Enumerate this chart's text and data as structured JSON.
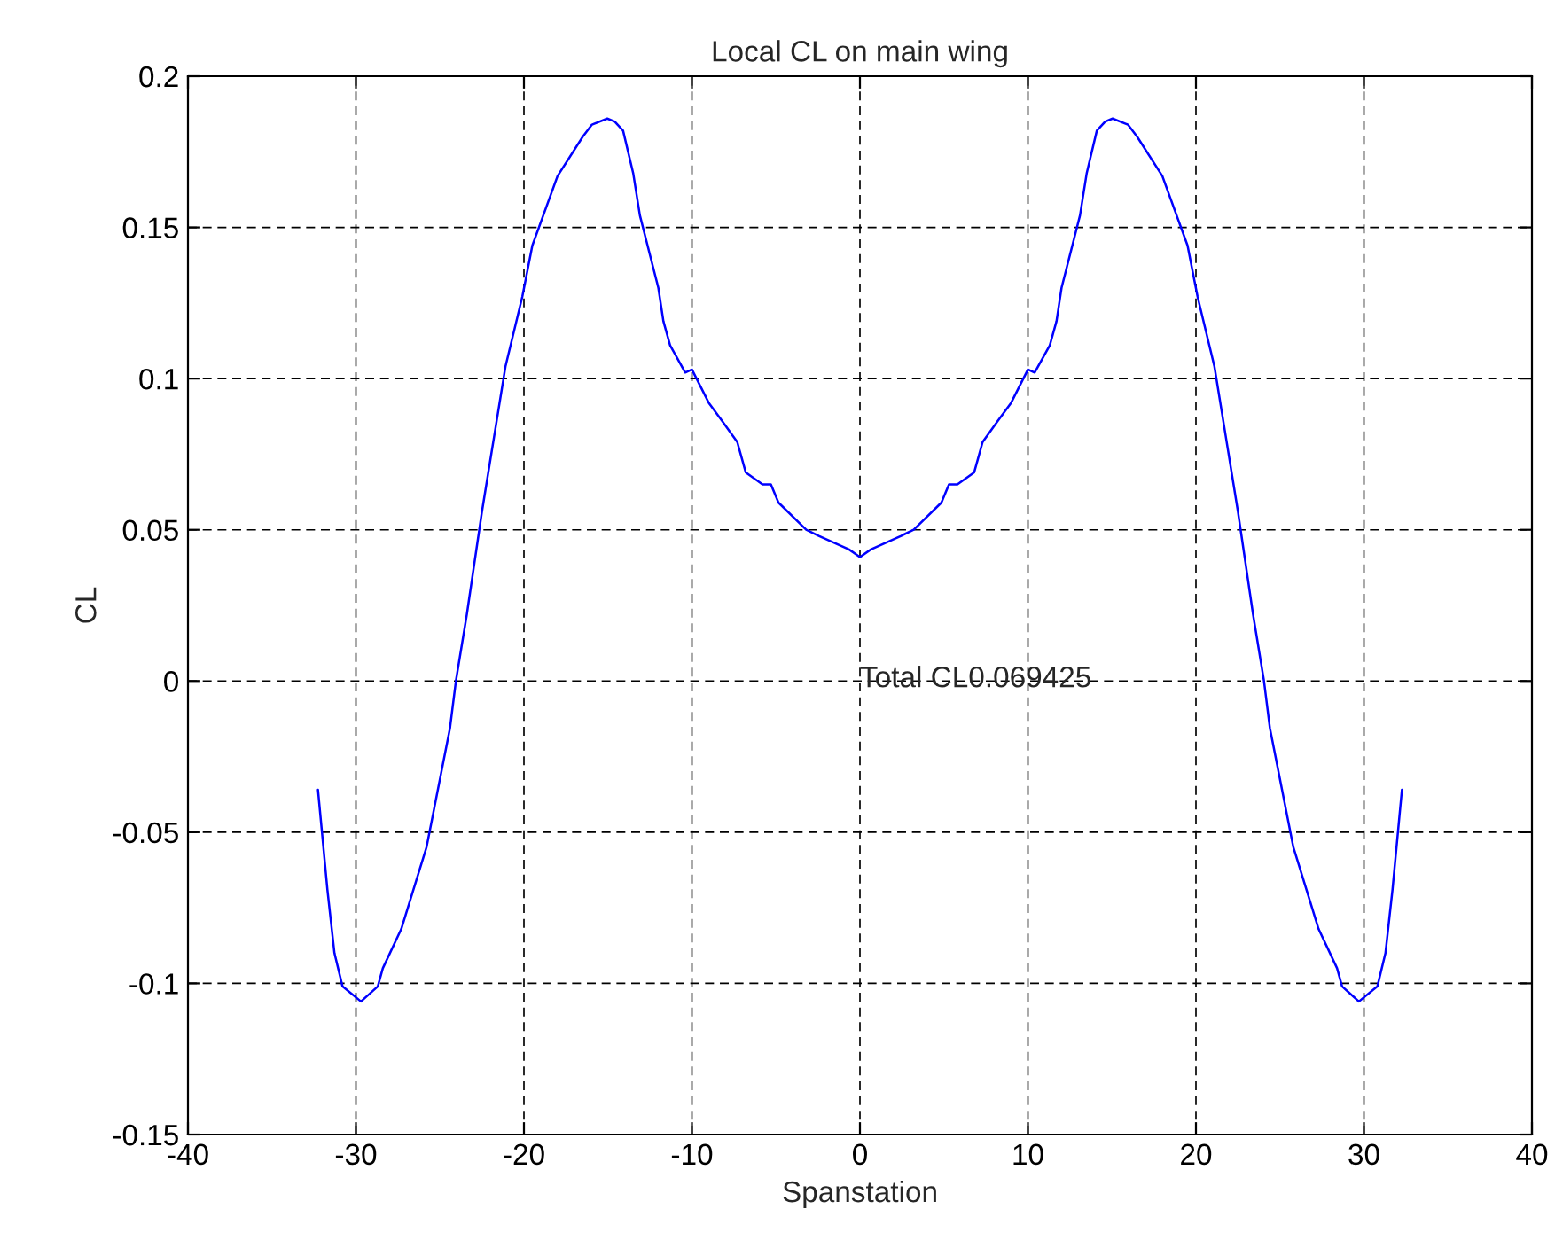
{
  "chart_data": {
    "type": "line",
    "title": "Local CL on main wing",
    "xlabel": "Spanstation",
    "ylabel": "CL",
    "xlim": [
      -40,
      40
    ],
    "xticks": [
      -40,
      -30,
      -20,
      -10,
      0,
      10,
      20,
      30,
      40
    ],
    "ylim": [
      -0.15,
      0.2
    ],
    "yticks": [
      -0.15,
      -0.1,
      -0.05,
      0,
      0.05,
      0.1,
      0.15,
      0.2
    ],
    "grid": true,
    "legend": false,
    "marker": "none",
    "line_style": "solid",
    "annotations": [
      "Total CL0.069425"
    ],
    "series": [
      {
        "color": "#0000ff",
        "x": [
          -32.26,
          -31.7,
          -31.28,
          -30.8,
          -29.7,
          -28.7,
          -28.4,
          -27.3,
          -25.8,
          -24.4,
          -24.05,
          -23.4,
          -22.5,
          -21.8,
          -21.1,
          -20.1,
          -19.5,
          -18.0,
          -16.5,
          -15.95,
          -15.04,
          -14.6,
          -14.1,
          -13.5,
          -13.1,
          -12.0,
          -11.7,
          -11.3,
          -10.4,
          -10.0,
          -9.0,
          -8.2,
          -7.3,
          -6.8,
          -5.8,
          -5.3,
          -4.85,
          -3.2,
          -2.45,
          -0.65,
          0,
          0.65,
          2.45,
          3.2,
          4.85,
          5.3,
          5.8,
          6.8,
          7.3,
          8.2,
          9.0,
          10.0,
          10.4,
          11.3,
          11.7,
          12.0,
          13.1,
          13.5,
          14.1,
          14.6,
          15.04,
          15.95,
          16.5,
          18.0,
          19.5,
          20.1,
          21.1,
          21.8,
          22.5,
          23.4,
          24.05,
          24.4,
          25.8,
          27.3,
          28.4,
          28.7,
          29.7,
          30.8,
          31.28,
          31.7,
          32.26
        ],
        "values": [
          -0.036,
          -0.069,
          -0.09,
          -0.101,
          -0.106,
          -0.101,
          -0.095,
          -0.082,
          -0.055,
          -0.0155,
          0.0,
          0.022,
          0.056,
          0.08,
          0.104,
          0.127,
          0.144,
          0.167,
          0.18,
          0.184,
          0.186,
          0.185,
          0.182,
          0.168,
          0.154,
          0.13,
          0.119,
          0.111,
          0.102,
          0.103,
          0.092,
          0.086,
          0.079,
          0.069,
          0.065,
          0.065,
          0.059,
          0.05,
          0.048,
          0.0435,
          0.041,
          0.0435,
          0.048,
          0.05,
          0.059,
          0.065,
          0.065,
          0.069,
          0.079,
          0.086,
          0.092,
          0.103,
          0.102,
          0.111,
          0.119,
          0.13,
          0.154,
          0.168,
          0.182,
          0.185,
          0.186,
          0.184,
          0.18,
          0.167,
          0.144,
          0.127,
          0.104,
          0.08,
          0.056,
          0.022,
          0.0,
          -0.0155,
          -0.055,
          -0.082,
          -0.095,
          -0.101,
          -0.106,
          -0.101,
          -0.09,
          -0.069,
          -0.036
        ]
      }
    ]
  }
}
